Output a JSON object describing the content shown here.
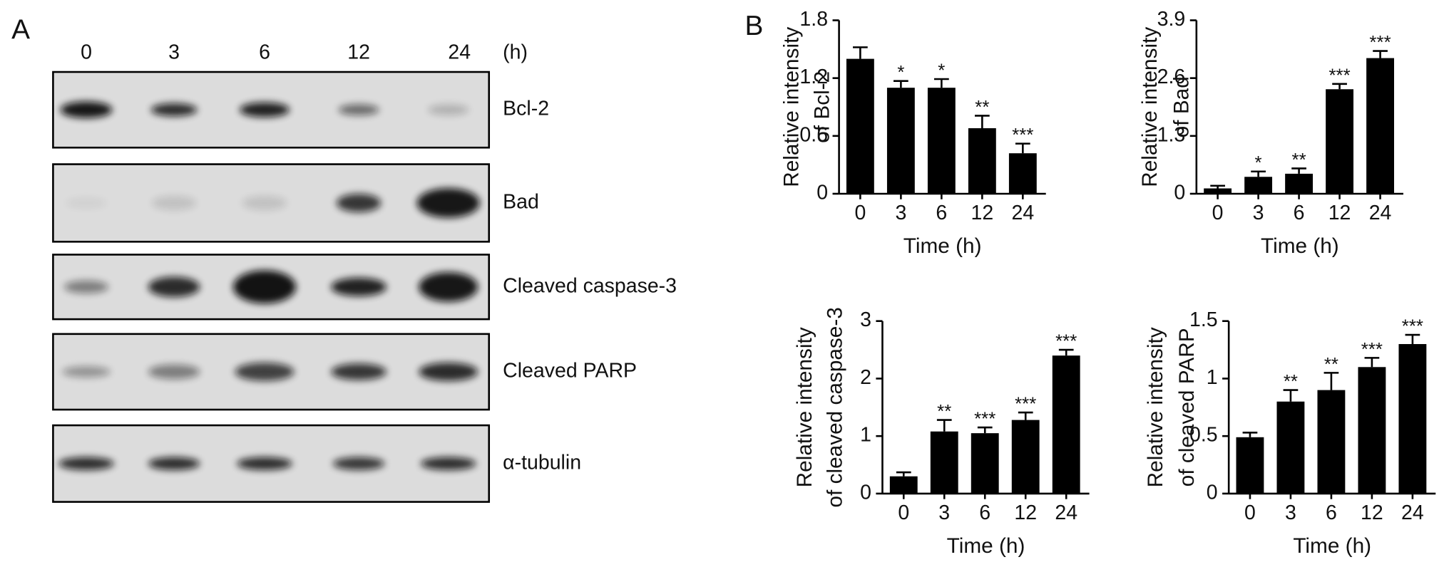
{
  "panel_a": {
    "label": "A",
    "times": [
      "0",
      "3",
      "6",
      "12",
      "24"
    ],
    "time_unit": "(h)",
    "proteins": [
      "Bcl-2",
      "Bad",
      "Cleaved caspase-3",
      "Cleaved PARP",
      "α-tubulin"
    ]
  },
  "panel_b_label": "B",
  "chart_data": [
    {
      "type": "bar",
      "ylabel": [
        "Relative intensity",
        "of Bcl-2"
      ],
      "xlabel": "Time (h)",
      "color": "#000000",
      "categories": [
        "0",
        "3",
        "6",
        "12",
        "24"
      ],
      "values": [
        1.4,
        1.1,
        1.1,
        0.68,
        0.42
      ],
      "errors": [
        0.12,
        0.07,
        0.09,
        0.13,
        0.1
      ],
      "annotations": [
        null,
        "*",
        "*",
        "**",
        "***"
      ],
      "ylim": [
        0,
        1.8
      ],
      "yticks": [
        0,
        0.6,
        1.2,
        1.8
      ]
    },
    {
      "type": "bar",
      "ylabel": [
        "Relative intensity",
        "of Bad"
      ],
      "xlabel": "Time (h)",
      "color": "#000000",
      "categories": [
        "0",
        "3",
        "6",
        "12",
        "24"
      ],
      "values": [
        0.12,
        0.38,
        0.45,
        2.35,
        3.05
      ],
      "errors": [
        0.06,
        0.12,
        0.12,
        0.12,
        0.16
      ],
      "annotations": [
        null,
        "*",
        "**",
        "***",
        "***"
      ],
      "ylim": [
        0,
        3.9
      ],
      "yticks": [
        0,
        1.3,
        2.6,
        3.9
      ]
    },
    {
      "type": "bar",
      "ylabel": [
        "Relative intensity",
        "of cleaved caspase-3"
      ],
      "xlabel": "Time (h)",
      "color": "#000000",
      "categories": [
        "0",
        "3",
        "6",
        "12",
        "24"
      ],
      "values": [
        0.3,
        1.08,
        1.05,
        1.28,
        2.4
      ],
      "errors": [
        0.07,
        0.2,
        0.1,
        0.13,
        0.1
      ],
      "annotations": [
        null,
        "**",
        "***",
        "***",
        "***"
      ],
      "ylim": [
        0,
        3
      ],
      "yticks": [
        0,
        1,
        2,
        3
      ]
    },
    {
      "type": "bar",
      "ylabel": [
        "Relative intensity",
        "of cleaved PARP"
      ],
      "xlabel": "Time (h)",
      "color": "#000000",
      "categories": [
        "0",
        "3",
        "6",
        "12",
        "24"
      ],
      "values": [
        0.49,
        0.8,
        0.9,
        1.1,
        1.3
      ],
      "errors": [
        0.04,
        0.1,
        0.15,
        0.08,
        0.08
      ],
      "annotations": [
        null,
        "**",
        "**",
        "***",
        "***"
      ],
      "ylim": [
        0,
        1.5
      ],
      "yticks": [
        0,
        0.5,
        1,
        1.5
      ]
    }
  ]
}
